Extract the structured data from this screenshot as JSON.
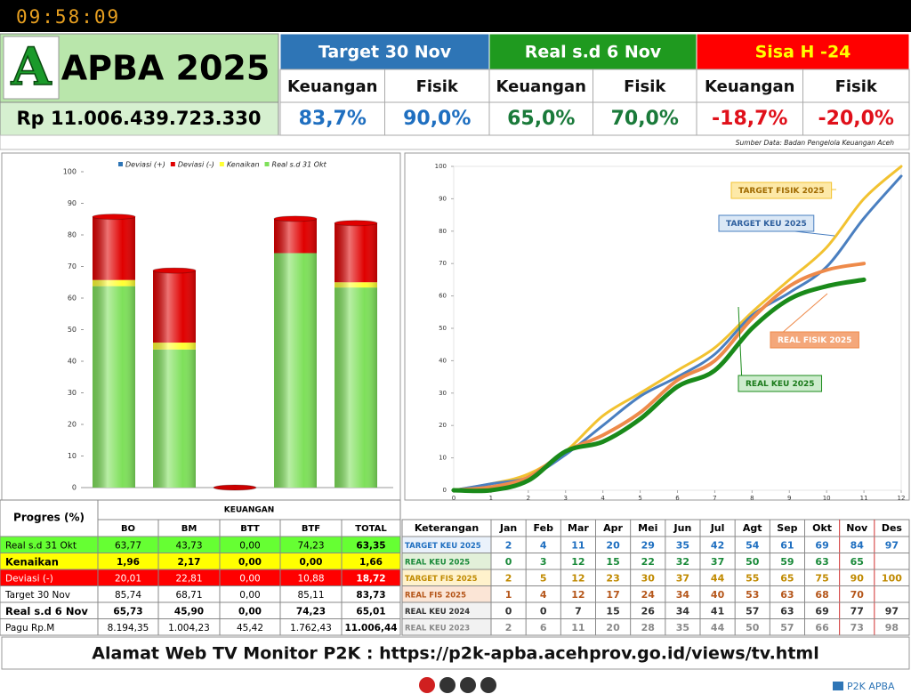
{
  "header": {
    "clock": "09:58:09",
    "logo": "A",
    "title": "APBA 2025",
    "amount": "Rp 11.006.439.723.330",
    "groups": [
      {
        "title": "Target 30 Nov",
        "color": "#2e75b6",
        "title_color": "#ffffff",
        "value_color": "#1f6fc0",
        "items": [
          {
            "label": "Keuangan",
            "value": "83,7%"
          },
          {
            "label": "Fisik",
            "value": "90,0%"
          }
        ]
      },
      {
        "title": "Real s.d 6 Nov",
        "color": "#1f9a1f",
        "title_color": "#ffffff",
        "value_color": "#1a7a3a",
        "items": [
          {
            "label": "Keuangan",
            "value": "65,0%"
          },
          {
            "label": "Fisik",
            "value": "70,0%"
          }
        ]
      },
      {
        "title": "Sisa H -24",
        "color": "#ff0000",
        "title_color": "#ffff00",
        "value_color": "#e0101a",
        "items": [
          {
            "label": "Keuangan",
            "value": "-18,7%"
          },
          {
            "label": "Fisik",
            "value": "-20,0%"
          }
        ]
      }
    ],
    "source": "Sumber Data: Badan Pengelola Keuangan Aceh"
  },
  "chart_data": [
    {
      "type": "bar",
      "stacked": true,
      "legend": "top",
      "categories": [
        null,
        null,
        null,
        null,
        null
      ],
      "series": [
        {
          "name": "Deviasi (+)",
          "color": "#2e75b6",
          "values": [
            0,
            0,
            0,
            0,
            0
          ]
        },
        {
          "name": "Deviasi (-)",
          "color": "#e00000",
          "values": [
            20.01,
            22.81,
            0,
            10.88,
            18.72
          ]
        },
        {
          "name": "Kenaikan",
          "color": "#ffff33",
          "values": [
            1.96,
            2.17,
            0,
            0,
            1.66
          ]
        },
        {
          "name": "Real s.d 31 Okt",
          "color": "#7ee05a",
          "values": [
            63.77,
            43.73,
            0,
            74.23,
            63.35
          ]
        }
      ],
      "ylim": [
        0,
        100
      ],
      "yticks": [
        0,
        10,
        20,
        30,
        40,
        50,
        60,
        70,
        80,
        90,
        100
      ]
    },
    {
      "type": "line",
      "x": [
        0,
        1,
        2,
        3,
        4,
        5,
        6,
        7,
        8,
        9,
        10,
        11,
        12
      ],
      "series": [
        {
          "name": "TARGET FISIK 2025",
          "color": "#f2c230",
          "values": [
            0,
            2,
            5,
            12,
            23,
            30,
            37,
            44,
            55,
            65,
            75,
            90,
            100
          ]
        },
        {
          "name": "TARGET KEU 2025",
          "color": "#4a7fc0",
          "values": [
            0,
            2,
            4,
            11,
            20,
            29,
            35,
            42,
            54,
            61,
            69,
            84,
            97
          ]
        },
        {
          "name": "REAL FISIK 2025",
          "color": "#ee8a4a",
          "values": [
            0,
            1,
            4,
            12,
            17,
            24,
            34,
            40,
            53,
            63,
            68,
            70,
            null
          ]
        },
        {
          "name": "REAL KEU 2025",
          "color": "#1a8a1a",
          "values": [
            0,
            0,
            3,
            12,
            15,
            22,
            32,
            37,
            50,
            59,
            63,
            65,
            null
          ]
        }
      ],
      "xlim": [
        0,
        12
      ],
      "xticks": [
        0,
        1,
        2,
        3,
        4,
        5,
        6,
        7,
        8,
        9,
        10,
        11,
        12
      ],
      "ylim": [
        0,
        100
      ],
      "yticks": [
        0,
        10,
        20,
        30,
        40,
        50,
        60,
        70,
        80,
        90,
        100
      ]
    }
  ],
  "progress_table": {
    "title": "Progres (%)",
    "group": "KEUANGAN",
    "columns": [
      "BO",
      "BM",
      "BTT",
      "BTF",
      "TOTAL"
    ],
    "rows": [
      {
        "label": "Real s.d 31 Okt",
        "background": "#66ff33",
        "color": "#000000",
        "bold": false,
        "values": [
          "63,77",
          "43,73",
          "0,00",
          "74,23",
          "63,35"
        ]
      },
      {
        "label": "Kenaikan",
        "background": "#ffff00",
        "color": "#000000",
        "bold": true,
        "values": [
          "1,96",
          "2,17",
          "0,00",
          "0,00",
          "1,66"
        ]
      },
      {
        "label": "Deviasi  (-)",
        "background": "#ff0000",
        "color": "#ffffff",
        "bold": false,
        "values": [
          "20,01",
          "22,81",
          "0,00",
          "10,88",
          "18,72"
        ]
      },
      {
        "label": "Target 30 Nov",
        "background": "#ffffff",
        "color": "#000000",
        "bold": false,
        "values": [
          "85,74",
          "68,71",
          "0,00",
          "85,11",
          "83,73"
        ]
      },
      {
        "label": "Real s.d 6 Nov",
        "background": "#ffffff",
        "color": "#000000",
        "bold": true,
        "values": [
          "65,73",
          "45,90",
          "0,00",
          "74,23",
          "65,01"
        ]
      },
      {
        "label": "Pagu Rp.M",
        "background": "#ffffff",
        "color": "#000000",
        "bold": false,
        "values": [
          "8.194,35",
          "1.004,23",
          "45,42",
          "1.762,43",
          "11.006,44"
        ]
      }
    ]
  },
  "monthly_table": {
    "header": "Keterangan",
    "columns": [
      "Jan",
      "Feb",
      "Mar",
      "Apr",
      "Mei",
      "Jun",
      "Jul",
      "Agt",
      "Sep",
      "Okt",
      "Nov",
      "Des"
    ],
    "rows": [
      {
        "label": "TARGET KEU 2025",
        "color": "#1f6fc0",
        "background": "#eaf2fb",
        "values": [
          "2",
          "4",
          "11",
          "20",
          "29",
          "35",
          "42",
          "54",
          "61",
          "69",
          "84",
          "97"
        ]
      },
      {
        "label": "REAL KEU 2025",
        "color": "#1a8a3a",
        "background": "#e2f0d9",
        "values": [
          "0",
          "3",
          "12",
          "15",
          "22",
          "32",
          "37",
          "50",
          "59",
          "63",
          "65",
          null
        ]
      },
      {
        "label": "TARGET FIS 2025",
        "color": "#c08a00",
        "background": "#fff2cc",
        "values": [
          "2",
          "5",
          "12",
          "23",
          "30",
          "37",
          "44",
          "55",
          "65",
          "75",
          "90",
          "100"
        ]
      },
      {
        "label": "REAL FIS 2025",
        "color": "#b5561a",
        "background": "#fbe5d6",
        "values": [
          "1",
          "4",
          "12",
          "17",
          "24",
          "34",
          "40",
          "53",
          "63",
          "68",
          "70",
          null
        ]
      },
      {
        "label": "REAL KEU 2024",
        "color": "#333333",
        "background": "#f2f2f2",
        "values": [
          "0",
          "0",
          "7",
          "15",
          "26",
          "34",
          "41",
          "57",
          "63",
          "69",
          "77",
          "97"
        ]
      },
      {
        "label": "REAL KEU 2023",
        "color": "#8a8a8a",
        "background": "#f2f2f2",
        "values": [
          "2",
          "6",
          "11",
          "20",
          "28",
          "35",
          "44",
          "50",
          "57",
          "66",
          "73",
          "98"
        ]
      }
    ]
  },
  "footer": {
    "address": "Alamat Web TV Monitor P2K : https://p2k-apba.acehprov.go.id/views/tv.html",
    "brand": "P2K APBA"
  }
}
